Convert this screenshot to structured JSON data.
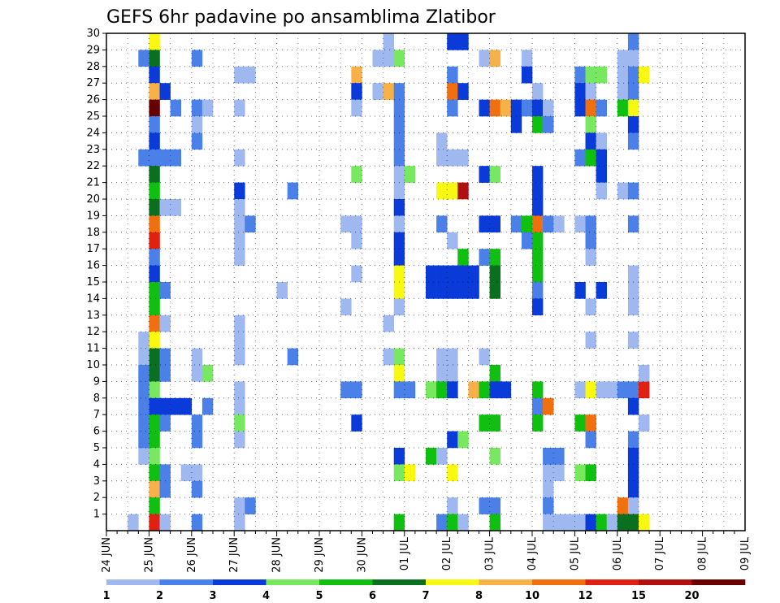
{
  "chart_data": {
    "type": "heatmap",
    "title": "GEFS 6hr padavine po ansamblima Zlatibor",
    "y_ticks": [
      "1",
      "2",
      "3",
      "4",
      "5",
      "6",
      "7",
      "8",
      "9",
      "10",
      "11",
      "12",
      "13",
      "14",
      "15",
      "16",
      "17",
      "18",
      "19",
      "20",
      "21",
      "22",
      "23",
      "24",
      "25",
      "26",
      "27",
      "28",
      "29",
      "30"
    ],
    "x_ticks": [
      "24 JUN",
      "25 JUN",
      "26 JUN",
      "27 JUN",
      "28 JUN",
      "29 JUN",
      "30 JUN",
      "01 JUL",
      "02 JUL",
      "03 JUL",
      "04 JUL",
      "05 JUL",
      "06 JUL",
      "07 JUL",
      "08 JUL",
      "09 JUL"
    ],
    "x_range": [
      "24 JUN",
      "09 JUL"
    ],
    "y_range": [
      0,
      30
    ],
    "time_steps_per_day": 4,
    "grid": "dotted",
    "legend": {
      "position": "bottom",
      "labels": [
        "1",
        "2",
        "3",
        "4",
        "5",
        "6",
        "7",
        "8",
        "10",
        "12",
        "15",
        "20"
      ],
      "colors": [
        "#a0b8f0",
        "#4a80e8",
        "#0a3ad8",
        "#78e860",
        "#10c010",
        "#0a7020",
        "#f8f810",
        "#f8b048",
        "#f07010",
        "#e02010",
        "#b01010",
        "#680000"
      ]
    },
    "levels": [
      1,
      2,
      3,
      4,
      5,
      6,
      7,
      8,
      10,
      12,
      15,
      20
    ],
    "cells_format": "[member, time_step, class_index]",
    "cells": [
      [
        30,
        4,
        6
      ],
      [
        29,
        4,
        5
      ],
      [
        28,
        4,
        2
      ],
      [
        27,
        4,
        7
      ],
      [
        26,
        4,
        11
      ],
      [
        25,
        4,
        1
      ],
      [
        24,
        4,
        2
      ],
      [
        23,
        4,
        1
      ],
      [
        22,
        4,
        5
      ],
      [
        21,
        4,
        4
      ],
      [
        20,
        4,
        5
      ],
      [
        19,
        4,
        8
      ],
      [
        18,
        4,
        9
      ],
      [
        17,
        4,
        1
      ],
      [
        16,
        4,
        2
      ],
      [
        15,
        4,
        4
      ],
      [
        14,
        4,
        4
      ],
      [
        13,
        4,
        8
      ],
      [
        12,
        4,
        6
      ],
      [
        11,
        4,
        5
      ],
      [
        10,
        4,
        5
      ],
      [
        9,
        4,
        3
      ],
      [
        8,
        4,
        2
      ],
      [
        7,
        4,
        4
      ],
      [
        6,
        4,
        4
      ],
      [
        5,
        4,
        3
      ],
      [
        4,
        4,
        4
      ],
      [
        3,
        4,
        7
      ],
      [
        2,
        4,
        4
      ],
      [
        1,
        4,
        9
      ],
      [
        29,
        3,
        1
      ],
      [
        23,
        3,
        1
      ],
      [
        12,
        3,
        0
      ],
      [
        11,
        3,
        0
      ],
      [
        10,
        3,
        1
      ],
      [
        5,
        3,
        0
      ],
      [
        9,
        3,
        1
      ],
      [
        8,
        3,
        1
      ],
      [
        7,
        3,
        1
      ],
      [
        6,
        3,
        1
      ],
      [
        1,
        2,
        0
      ],
      [
        23,
        5,
        1
      ],
      [
        23,
        6,
        1
      ],
      [
        27,
        5,
        2
      ],
      [
        26,
        6,
        1
      ],
      [
        15,
        5,
        1
      ],
      [
        11,
        5,
        1
      ],
      [
        10,
        5,
        1
      ],
      [
        8,
        5,
        2
      ],
      [
        8,
        6,
        2
      ],
      [
        8,
        7,
        2
      ],
      [
        7,
        5,
        1
      ],
      [
        4,
        5,
        1
      ],
      [
        3,
        5,
        1
      ],
      [
        1,
        5,
        0
      ],
      [
        20,
        5,
        0
      ],
      [
        20,
        6,
        0
      ],
      [
        13,
        5,
        0
      ],
      [
        29,
        8,
        1
      ],
      [
        24,
        8,
        1
      ],
      [
        26,
        8,
        1
      ],
      [
        26,
        9,
        0
      ],
      [
        25,
        8,
        0
      ],
      [
        8,
        9,
        1
      ],
      [
        7,
        8,
        1
      ],
      [
        6,
        8,
        1
      ],
      [
        4,
        7,
        0
      ],
      [
        4,
        8,
        0
      ],
      [
        3,
        8,
        1
      ],
      [
        1,
        8,
        1
      ],
      [
        10,
        8,
        0
      ],
      [
        10,
        9,
        3
      ],
      [
        11,
        8,
        0
      ],
      [
        21,
        12,
        2
      ],
      [
        20,
        12,
        0
      ],
      [
        19,
        12,
        0
      ],
      [
        19,
        13,
        1
      ],
      [
        18,
        12,
        0
      ],
      [
        17,
        12,
        0
      ],
      [
        13,
        12,
        0
      ],
      [
        12,
        12,
        0
      ],
      [
        11,
        12,
        0
      ],
      [
        9,
        12,
        0
      ],
      [
        8,
        12,
        0
      ],
      [
        7,
        12,
        3
      ],
      [
        6,
        12,
        0
      ],
      [
        2,
        12,
        0
      ],
      [
        2,
        13,
        1
      ],
      [
        1,
        12,
        0
      ],
      [
        26,
        12,
        0
      ],
      [
        28,
        12,
        0
      ],
      [
        28,
        13,
        0
      ],
      [
        23,
        12,
        0
      ],
      [
        21,
        17,
        1
      ],
      [
        15,
        16,
        0
      ],
      [
        11,
        17,
        1
      ],
      [
        28,
        23,
        7
      ],
      [
        27,
        23,
        2
      ],
      [
        26,
        23,
        0
      ],
      [
        22,
        23,
        3
      ],
      [
        19,
        22,
        0
      ],
      [
        19,
        23,
        0
      ],
      [
        18,
        23,
        0
      ],
      [
        16,
        23,
        0
      ],
      [
        14,
        22,
        0
      ],
      [
        9,
        22,
        1
      ],
      [
        9,
        23,
        1
      ],
      [
        7,
        23,
        2
      ],
      [
        30,
        26,
        0
      ],
      [
        29,
        25,
        0
      ],
      [
        29,
        26,
        0
      ],
      [
        29,
        27,
        3
      ],
      [
        27,
        25,
        0
      ],
      [
        27,
        26,
        7
      ],
      [
        27,
        27,
        1
      ],
      [
        26,
        27,
        1
      ],
      [
        25,
        27,
        1
      ],
      [
        24,
        27,
        1
      ],
      [
        23,
        27,
        1
      ],
      [
        22,
        27,
        0
      ],
      [
        22,
        28,
        3
      ],
      [
        21,
        27,
        0
      ],
      [
        20,
        27,
        2
      ],
      [
        19,
        27,
        0
      ],
      [
        18,
        27,
        2
      ],
      [
        17,
        27,
        2
      ],
      [
        16,
        27,
        6
      ],
      [
        15,
        27,
        6
      ],
      [
        14,
        27,
        0
      ],
      [
        13,
        26,
        0
      ],
      [
        11,
        26,
        0
      ],
      [
        11,
        27,
        3
      ],
      [
        10,
        27,
        6
      ],
      [
        9,
        27,
        1
      ],
      [
        9,
        28,
        1
      ],
      [
        5,
        27,
        2
      ],
      [
        4,
        27,
        3
      ],
      [
        4,
        28,
        6
      ],
      [
        1,
        27,
        4
      ],
      [
        30,
        32,
        2
      ],
      [
        30,
        33,
        2
      ],
      [
        28,
        32,
        1
      ],
      [
        27,
        32,
        8
      ],
      [
        27,
        33,
        2
      ],
      [
        26,
        32,
        1
      ],
      [
        23,
        31,
        0
      ],
      [
        23,
        32,
        0
      ],
      [
        23,
        33,
        0
      ],
      [
        24,
        31,
        0
      ],
      [
        21,
        31,
        6
      ],
      [
        21,
        32,
        6
      ],
      [
        21,
        33,
        10
      ],
      [
        19,
        31,
        1
      ],
      [
        18,
        32,
        0
      ],
      [
        17,
        33,
        4
      ],
      [
        16,
        30,
        2
      ],
      [
        16,
        31,
        2
      ],
      [
        16,
        32,
        2
      ],
      [
        16,
        33,
        2
      ],
      [
        16,
        34,
        2
      ],
      [
        15,
        30,
        2
      ],
      [
        15,
        31,
        2
      ],
      [
        15,
        32,
        2
      ],
      [
        15,
        33,
        2
      ],
      [
        15,
        34,
        2
      ],
      [
        11,
        31,
        0
      ],
      [
        11,
        32,
        0
      ],
      [
        10,
        31,
        0
      ],
      [
        10,
        32,
        0
      ],
      [
        9,
        30,
        3
      ],
      [
        9,
        31,
        4
      ],
      [
        9,
        32,
        2
      ],
      [
        6,
        32,
        2
      ],
      [
        6,
        33,
        3
      ],
      [
        5,
        30,
        4
      ],
      [
        5,
        31,
        0
      ],
      [
        4,
        32,
        6
      ],
      [
        2,
        32,
        0
      ],
      [
        1,
        31,
        1
      ],
      [
        1,
        32,
        4
      ],
      [
        1,
        33,
        0
      ],
      [
        29,
        35,
        0
      ],
      [
        29,
        36,
        7
      ],
      [
        26,
        35,
        2
      ],
      [
        26,
        36,
        8
      ],
      [
        26,
        37,
        7
      ],
      [
        26,
        38,
        2
      ],
      [
        25,
        38,
        2
      ],
      [
        22,
        35,
        2
      ],
      [
        22,
        36,
        3
      ],
      [
        19,
        35,
        2
      ],
      [
        19,
        36,
        2
      ],
      [
        19,
        38,
        1
      ],
      [
        19,
        39,
        4
      ],
      [
        17,
        35,
        1
      ],
      [
        17,
        36,
        4
      ],
      [
        16,
        36,
        5
      ],
      [
        15,
        36,
        5
      ],
      [
        11,
        35,
        0
      ],
      [
        10,
        36,
        4
      ],
      [
        9,
        34,
        7
      ],
      [
        9,
        35,
        4
      ],
      [
        9,
        36,
        2
      ],
      [
        9,
        37,
        2
      ],
      [
        7,
        35,
        4
      ],
      [
        7,
        36,
        4
      ],
      [
        5,
        36,
        3
      ],
      [
        2,
        35,
        1
      ],
      [
        2,
        36,
        1
      ],
      [
        1,
        36,
        4
      ],
      [
        29,
        39,
        0
      ],
      [
        28,
        39,
        2
      ],
      [
        27,
        40,
        0
      ],
      [
        26,
        39,
        1
      ],
      [
        26,
        40,
        2
      ],
      [
        26,
        41,
        0
      ],
      [
        25,
        40,
        4
      ],
      [
        25,
        41,
        1
      ],
      [
        22,
        40,
        2
      ],
      [
        21,
        40,
        2
      ],
      [
        20,
        40,
        2
      ],
      [
        19,
        40,
        8
      ],
      [
        19,
        41,
        1
      ],
      [
        19,
        42,
        0
      ],
      [
        18,
        39,
        1
      ],
      [
        18,
        40,
        4
      ],
      [
        17,
        40,
        4
      ],
      [
        16,
        40,
        4
      ],
      [
        15,
        40,
        1
      ],
      [
        14,
        40,
        2
      ],
      [
        9,
        40,
        4
      ],
      [
        8,
        40,
        1
      ],
      [
        8,
        41,
        8
      ],
      [
        7,
        40,
        4
      ],
      [
        4,
        41,
        0
      ],
      [
        4,
        42,
        0
      ],
      [
        3,
        41,
        0
      ],
      [
        2,
        41,
        1
      ],
      [
        1,
        41,
        0
      ],
      [
        1,
        42,
        0
      ],
      [
        1,
        43,
        0
      ],
      [
        5,
        41,
        1
      ],
      [
        5,
        42,
        1
      ],
      [
        28,
        44,
        1
      ],
      [
        28,
        45,
        3
      ],
      [
        28,
        46,
        3
      ],
      [
        27,
        44,
        2
      ],
      [
        27,
        45,
        0
      ],
      [
        26,
        44,
        2
      ],
      [
        26,
        45,
        8
      ],
      [
        26,
        46,
        1
      ],
      [
        25,
        45,
        3
      ],
      [
        24,
        45,
        2
      ],
      [
        24,
        46,
        0
      ],
      [
        23,
        44,
        1
      ],
      [
        23,
        45,
        4
      ],
      [
        23,
        46,
        2
      ],
      [
        22,
        46,
        2
      ],
      [
        21,
        46,
        0
      ],
      [
        19,
        44,
        0
      ],
      [
        19,
        45,
        1
      ],
      [
        18,
        45,
        1
      ],
      [
        17,
        45,
        0
      ],
      [
        15,
        44,
        2
      ],
      [
        15,
        46,
        2
      ],
      [
        14,
        45,
        0
      ],
      [
        12,
        45,
        0
      ],
      [
        9,
        44,
        0
      ],
      [
        9,
        45,
        6
      ],
      [
        9,
        46,
        0
      ],
      [
        9,
        47,
        0
      ],
      [
        7,
        44,
        4
      ],
      [
        7,
        45,
        8
      ],
      [
        6,
        45,
        1
      ],
      [
        4,
        44,
        3
      ],
      [
        4,
        45,
        4
      ],
      [
        1,
        44,
        0
      ],
      [
        1,
        45,
        2
      ],
      [
        1,
        46,
        4
      ],
      [
        1,
        47,
        0
      ],
      [
        30,
        49,
        1
      ],
      [
        29,
        48,
        0
      ],
      [
        29,
        49,
        0
      ],
      [
        28,
        48,
        0
      ],
      [
        28,
        49,
        1
      ],
      [
        28,
        50,
        6
      ],
      [
        27,
        48,
        0
      ],
      [
        27,
        49,
        1
      ],
      [
        26,
        48,
        4
      ],
      [
        26,
        49,
        6
      ],
      [
        25,
        49,
        2
      ],
      [
        24,
        49,
        1
      ],
      [
        21,
        48,
        0
      ],
      [
        21,
        49,
        1
      ],
      [
        19,
        49,
        1
      ],
      [
        16,
        49,
        0
      ],
      [
        15,
        49,
        0
      ],
      [
        14,
        49,
        0
      ],
      [
        9,
        48,
        1
      ],
      [
        9,
        49,
        1
      ],
      [
        9,
        50,
        9
      ],
      [
        7,
        50,
        0
      ],
      [
        6,
        49,
        1
      ],
      [
        4,
        49,
        2
      ],
      [
        3,
        49,
        2
      ],
      [
        2,
        48,
        8
      ],
      [
        2,
        49,
        0
      ],
      [
        1,
        48,
        5
      ],
      [
        1,
        49,
        5
      ],
      [
        1,
        50,
        6
      ],
      [
        10,
        50,
        0
      ],
      [
        5,
        49,
        2
      ],
      [
        8,
        49,
        2
      ],
      [
        12,
        49,
        0
      ]
    ]
  }
}
